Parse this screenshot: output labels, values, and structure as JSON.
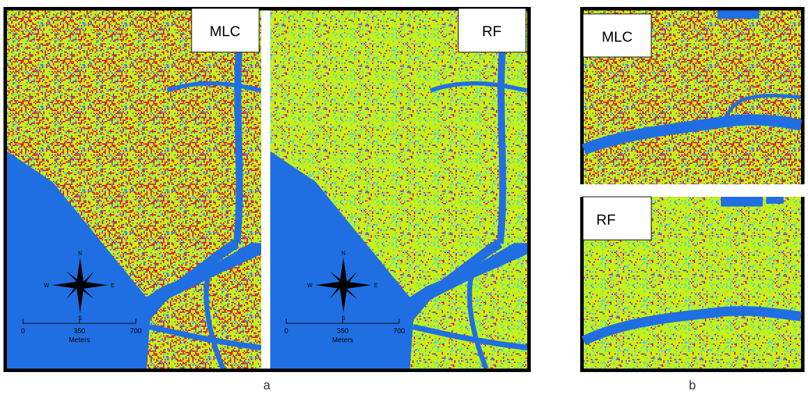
{
  "panel_a": {
    "label": "a",
    "maps": [
      {
        "title": "MLC",
        "compass": {
          "n": "N",
          "s": "S",
          "e": "E",
          "w": "W"
        },
        "scale": {
          "ticks": [
            "0",
            "350",
            "700"
          ],
          "unit": "Meters"
        }
      },
      {
        "title": "RF",
        "compass": {
          "n": "N",
          "s": "S",
          "e": "E",
          "w": "W"
        },
        "scale": {
          "ticks": [
            "0",
            "350",
            "700"
          ],
          "unit": "Meters"
        }
      }
    ]
  },
  "panel_b": {
    "label": "b",
    "maps": [
      {
        "title": "MLC"
      },
      {
        "title": "RF"
      }
    ]
  }
}
